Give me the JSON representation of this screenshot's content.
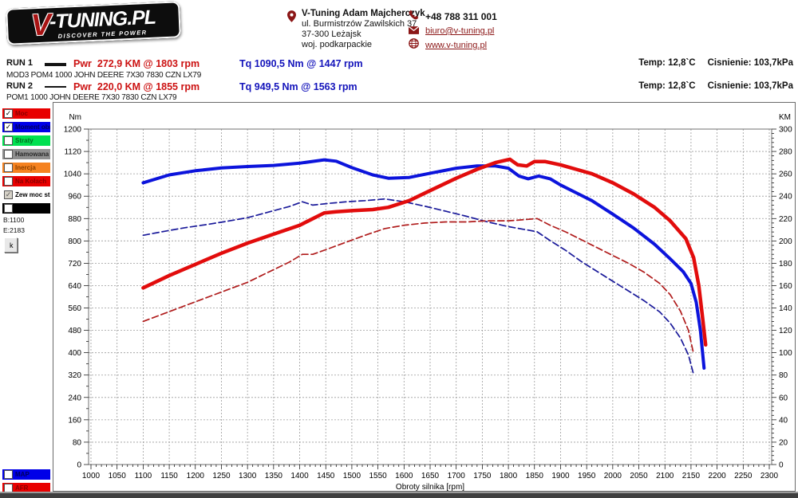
{
  "header": {
    "logo": {
      "v": "V",
      "rest": "-TUNING.PL",
      "tagline": "DISCOVER THE POWER"
    },
    "contact": {
      "name": "V-Tuning Adam Majcherczyk",
      "address_line1": "ul. Burmistrzów Zawilskich 37",
      "address_line2": "37-300 Leżajsk",
      "address_line3": "woj. podkarpackie"
    },
    "phone": "+48 788 311 001",
    "email": "biuro@v-tuning.pl",
    "website": "www.v-tuning.pl"
  },
  "runs": [
    {
      "label": "RUN 1",
      "power": "Pwr  272,9 KM @ 1803 rpm",
      "torque": "Tq 1090,5 Nm @ 1447 rpm",
      "temp": "Temp: 12,8`C",
      "pressure": "Cisnienie: 103,7kPa",
      "description": "MOD3 POM4 1000 JOHN DEERE 7X30 7830 CZN LX79"
    },
    {
      "label": "RUN 2",
      "power": "Pwr  220,0 KM @ 1855 rpm",
      "torque": "Tq 949,5 Nm @ 1563 rpm",
      "temp": "Temp: 12,8`C",
      "pressure": "Cisnienie: 103,7kPa",
      "description": "POM1 1000 JOHN DEERE 7X30 7830 CZN LX79"
    }
  ],
  "sidebar": {
    "legend_items": [
      {
        "label": "Moc",
        "color": "#e80000",
        "text_color": "#8a0000",
        "checked": true,
        "disabled": false
      },
      {
        "label": "Moment obr",
        "color": "#0000e8",
        "text_color": "#00005a",
        "checked": true,
        "disabled": false
      },
      {
        "label": "Straty",
        "color": "#00e050",
        "text_color": "#007020",
        "checked": false,
        "disabled": false
      },
      {
        "label": "Hamowana",
        "color": "#8f8f8f",
        "text_color": "#2a2a2a",
        "checked": false,
        "disabled": false
      },
      {
        "label": "Inercja",
        "color": "#f58220",
        "text_color": "#8a4000",
        "checked": false,
        "disabled": false
      },
      {
        "label": "Na Kołach",
        "color": "#e80000",
        "text_color": "#8a0000",
        "checked": false,
        "disabled": false
      },
      {
        "label": "Zew moc st",
        "color": "#ffffff",
        "text_color": "#000000",
        "checked": true,
        "disabled": true
      },
      {
        "label": "",
        "color": "#000000",
        "text_color": "#ffffff",
        "checked": false,
        "disabled": false
      }
    ],
    "b_value": "B:1100",
    "e_value": "E:2183",
    "k_button": "k",
    "bottom_items": [
      {
        "label": "MAP",
        "color": "#0000e8",
        "text_color": "#00005a",
        "checked": false,
        "disabled": false
      },
      {
        "label": "AFR",
        "color": "#e80000",
        "text_color": "#8a0000",
        "checked": false,
        "disabled": false
      }
    ]
  },
  "chart_data": {
    "type": "line",
    "xlabel": "Obroty silnika [rpm]",
    "x_range": [
      1000,
      2300
    ],
    "x_tick_step": 50,
    "x_minor_step": 10,
    "grid": true,
    "left_axis": {
      "label": "Nm",
      "range": [
        0,
        1200
      ],
      "tick_step": 80
    },
    "right_axis": {
      "label": "KM",
      "range": [
        0,
        300
      ],
      "tick_step": 20
    },
    "series": [
      {
        "name": "RUN 2 Moment obrotowy [Nm]",
        "axis": "left",
        "style": "dashed",
        "color": "#1a1a9a",
        "width": 1.7,
        "points": [
          [
            1100,
            820
          ],
          [
            1140,
            834
          ],
          [
            1180,
            847
          ],
          [
            1220,
            858
          ],
          [
            1260,
            870
          ],
          [
            1300,
            883
          ],
          [
            1340,
            903
          ],
          [
            1380,
            923
          ],
          [
            1405,
            940
          ],
          [
            1425,
            928
          ],
          [
            1455,
            934
          ],
          [
            1490,
            940
          ],
          [
            1525,
            944
          ],
          [
            1563,
            950
          ],
          [
            1600,
            940
          ],
          [
            1640,
            924
          ],
          [
            1680,
            906
          ],
          [
            1720,
            888
          ],
          [
            1760,
            868
          ],
          [
            1800,
            851
          ],
          [
            1830,
            841
          ],
          [
            1855,
            833
          ],
          [
            1880,
            801
          ],
          [
            1910,
            766
          ],
          [
            1940,
            726
          ],
          [
            1970,
            691
          ],
          [
            2000,
            656
          ],
          [
            2030,
            621
          ],
          [
            2060,
            586
          ],
          [
            2090,
            546
          ],
          [
            2110,
            506
          ],
          [
            2130,
            452
          ],
          [
            2145,
            392
          ],
          [
            2155,
            322
          ]
        ]
      },
      {
        "name": "RUN 2 Moc [KM]",
        "axis": "right",
        "style": "dashed",
        "color": "#b01c1c",
        "width": 1.7,
        "points": [
          [
            1100,
            128
          ],
          [
            1140,
            135
          ],
          [
            1180,
            142
          ],
          [
            1220,
            149
          ],
          [
            1260,
            156
          ],
          [
            1300,
            163
          ],
          [
            1340,
            172
          ],
          [
            1380,
            181
          ],
          [
            1405,
            188
          ],
          [
            1425,
            188
          ],
          [
            1455,
            193
          ],
          [
            1490,
            199
          ],
          [
            1525,
            205
          ],
          [
            1563,
            211
          ],
          [
            1600,
            214
          ],
          [
            1640,
            216
          ],
          [
            1680,
            217
          ],
          [
            1720,
            217
          ],
          [
            1760,
            218
          ],
          [
            1800,
            218
          ],
          [
            1830,
            219
          ],
          [
            1855,
            220
          ],
          [
            1880,
            214
          ],
          [
            1910,
            208
          ],
          [
            1940,
            201
          ],
          [
            1970,
            194
          ],
          [
            2000,
            187
          ],
          [
            2030,
            180
          ],
          [
            2060,
            172
          ],
          [
            2090,
            162
          ],
          [
            2110,
            152
          ],
          [
            2130,
            137
          ],
          [
            2145,
            120
          ],
          [
            2155,
            99
          ]
        ]
      },
      {
        "name": "RUN 1 Moment obrotowy [Nm]",
        "axis": "left",
        "style": "solid",
        "color": "#0c14dc",
        "width": 4,
        "points": [
          [
            1100,
            1008
          ],
          [
            1150,
            1036
          ],
          [
            1200,
            1051
          ],
          [
            1250,
            1061
          ],
          [
            1300,
            1066
          ],
          [
            1350,
            1070
          ],
          [
            1400,
            1078
          ],
          [
            1447,
            1090
          ],
          [
            1470,
            1085
          ],
          [
            1500,
            1062
          ],
          [
            1540,
            1036
          ],
          [
            1570,
            1024
          ],
          [
            1610,
            1027
          ],
          [
            1650,
            1042
          ],
          [
            1700,
            1060
          ],
          [
            1740,
            1068
          ],
          [
            1775,
            1068
          ],
          [
            1800,
            1060
          ],
          [
            1820,
            1032
          ],
          [
            1838,
            1022
          ],
          [
            1858,
            1032
          ],
          [
            1880,
            1022
          ],
          [
            1900,
            1000
          ],
          [
            1930,
            972
          ],
          [
            1960,
            944
          ],
          [
            2000,
            896
          ],
          [
            2040,
            846
          ],
          [
            2080,
            788
          ],
          [
            2110,
            736
          ],
          [
            2135,
            690
          ],
          [
            2150,
            648
          ],
          [
            2160,
            580
          ],
          [
            2168,
            480
          ],
          [
            2175,
            345
          ]
        ]
      },
      {
        "name": "RUN 1 Moc [KM]",
        "axis": "right",
        "style": "solid",
        "color": "#e20c0c",
        "width": 4.5,
        "points": [
          [
            1100,
            158
          ],
          [
            1150,
            169
          ],
          [
            1200,
            179
          ],
          [
            1250,
            189
          ],
          [
            1300,
            198
          ],
          [
            1350,
            206
          ],
          [
            1400,
            214
          ],
          [
            1447,
            225
          ],
          [
            1470,
            226
          ],
          [
            1500,
            227
          ],
          [
            1540,
            228
          ],
          [
            1570,
            230
          ],
          [
            1610,
            236
          ],
          [
            1650,
            245
          ],
          [
            1700,
            256
          ],
          [
            1740,
            264
          ],
          [
            1775,
            270
          ],
          [
            1803,
            273
          ],
          [
            1818,
            268
          ],
          [
            1835,
            267
          ],
          [
            1850,
            271
          ],
          [
            1870,
            271
          ],
          [
            1900,
            268
          ],
          [
            1930,
            264
          ],
          [
            1960,
            260
          ],
          [
            2000,
            252
          ],
          [
            2040,
            242
          ],
          [
            2080,
            230
          ],
          [
            2110,
            218
          ],
          [
            2140,
            202
          ],
          [
            2155,
            185
          ],
          [
            2165,
            160
          ],
          [
            2172,
            132
          ],
          [
            2178,
            107
          ]
        ]
      }
    ]
  }
}
